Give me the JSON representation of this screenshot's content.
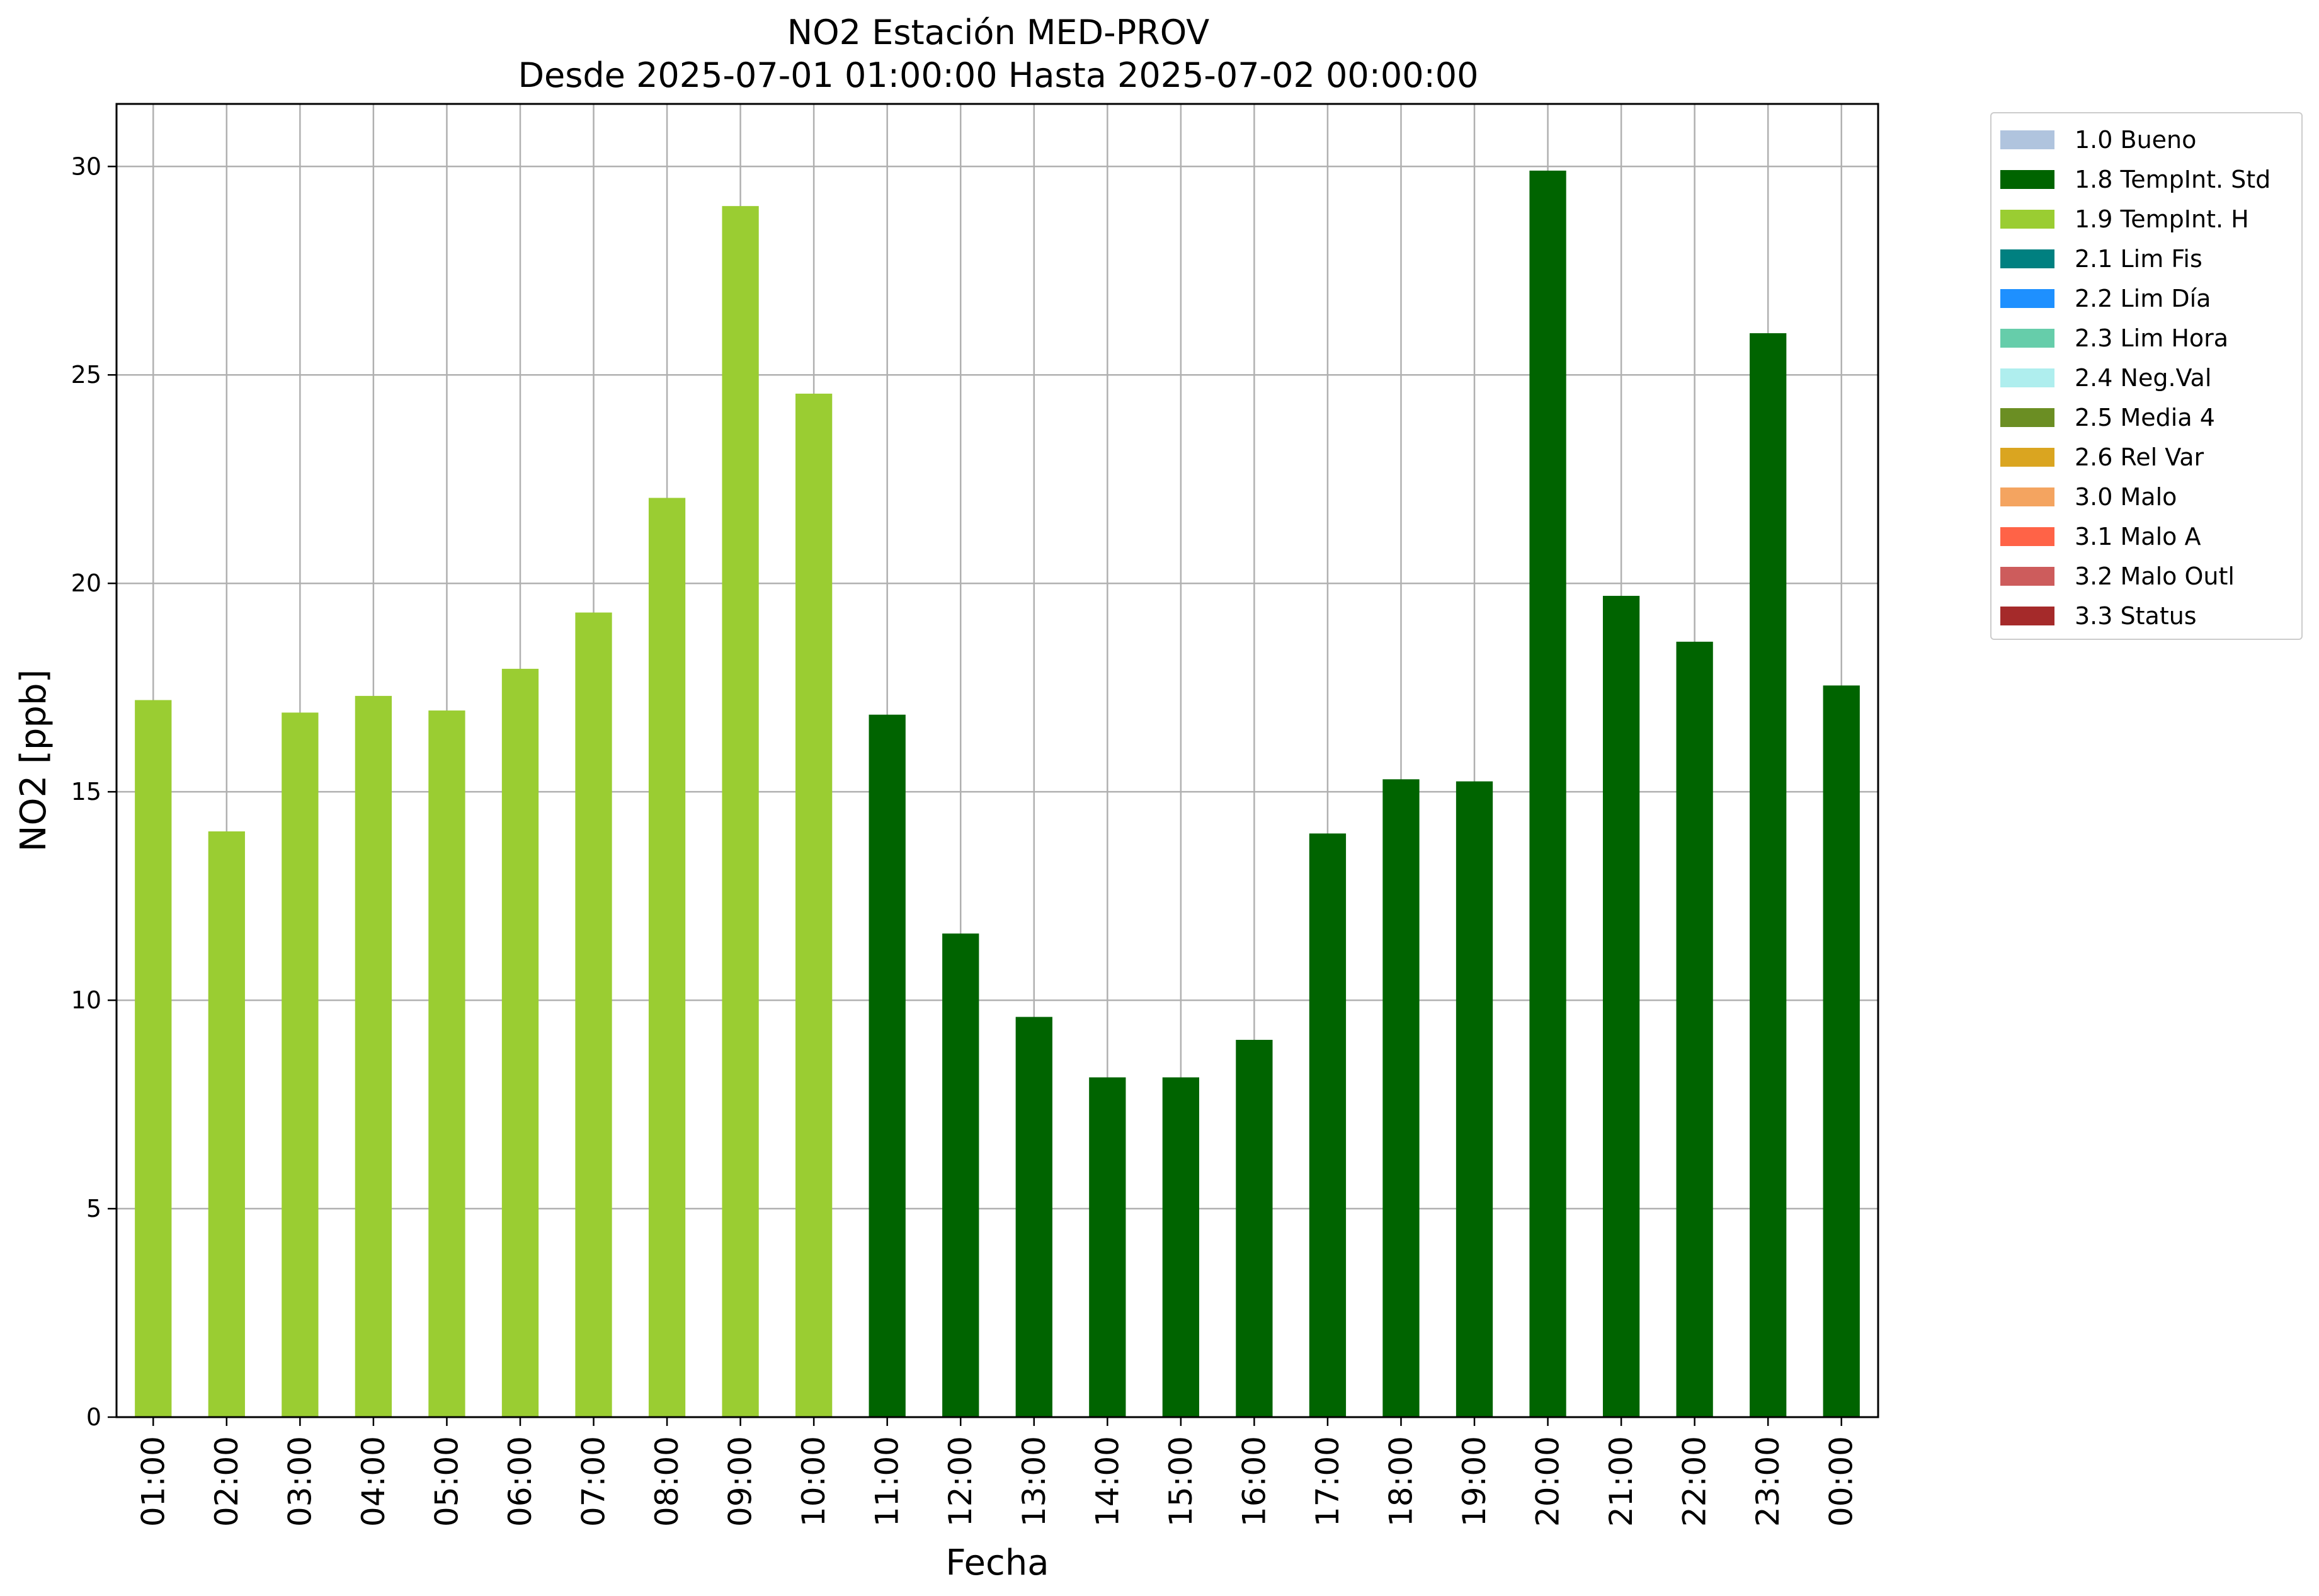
{
  "chart_data": {
    "type": "bar",
    "title": "NO2 Estación MED-PROV",
    "subtitle": "Desde 2025-07-01 01:00:00 Hasta 2025-07-02 00:00:00",
    "xlabel": "Fecha",
    "ylabel": "NO2 [ppb]",
    "ylim": [
      0,
      31.5
    ],
    "yticks": [
      0,
      5,
      10,
      15,
      20,
      25,
      30
    ],
    "grid": true,
    "legend_position": "outside-top-right",
    "categories": [
      "01:00",
      "02:00",
      "03:00",
      "04:00",
      "05:00",
      "06:00",
      "07:00",
      "08:00",
      "09:00",
      "10:00",
      "11:00",
      "12:00",
      "13:00",
      "14:00",
      "15:00",
      "16:00",
      "17:00",
      "18:00",
      "19:00",
      "20:00",
      "21:00",
      "22:00",
      "23:00",
      "00:00"
    ],
    "values": [
      17.2,
      14.05,
      16.9,
      17.3,
      16.95,
      17.95,
      19.3,
      22.05,
      29.05,
      24.55,
      16.85,
      11.6,
      9.6,
      8.15,
      8.15,
      9.05,
      14.0,
      15.3,
      15.25,
      29.9,
      19.7,
      18.6,
      26.0,
      17.55
    ],
    "flags": [
      "1.9",
      "1.9",
      "1.9",
      "1.9",
      "1.9",
      "1.9",
      "1.9",
      "1.9",
      "1.9",
      "1.9",
      "1.8",
      "1.8",
      "1.8",
      "1.8",
      "1.8",
      "1.8",
      "1.8",
      "1.8",
      "1.8",
      "1.8",
      "1.8",
      "1.8",
      "1.8",
      "1.8"
    ],
    "legend": [
      {
        "code": "1.0",
        "label": "1.0 Bueno",
        "color": "#b0c4de"
      },
      {
        "code": "1.8",
        "label": "1.8 TempInt. Std",
        "color": "#006400"
      },
      {
        "code": "1.9",
        "label": "1.9 TempInt. H",
        "color": "#9acd32"
      },
      {
        "code": "2.1",
        "label": "2.1 Lim Fis",
        "color": "#008080"
      },
      {
        "code": "2.2",
        "label": "2.2 Lim Día",
        "color": "#1e90ff"
      },
      {
        "code": "2.3",
        "label": "2.3 Lim Hora",
        "color": "#66cdaa"
      },
      {
        "code": "2.4",
        "label": "2.4 Neg.Val",
        "color": "#afeeee"
      },
      {
        "code": "2.5",
        "label": "2.5 Media 4",
        "color": "#6b8e23"
      },
      {
        "code": "2.6",
        "label": "2.6 Rel Var",
        "color": "#daa520"
      },
      {
        "code": "3.0",
        "label": "3.0 Malo",
        "color": "#f4a460"
      },
      {
        "code": "3.1",
        "label": "3.1 Malo A",
        "color": "#ff6347"
      },
      {
        "code": "3.2",
        "label": "3.2 Malo Outl",
        "color": "#cd5c5c"
      },
      {
        "code": "3.3",
        "label": "3.3 Status",
        "color": "#a52a2a"
      }
    ]
  }
}
